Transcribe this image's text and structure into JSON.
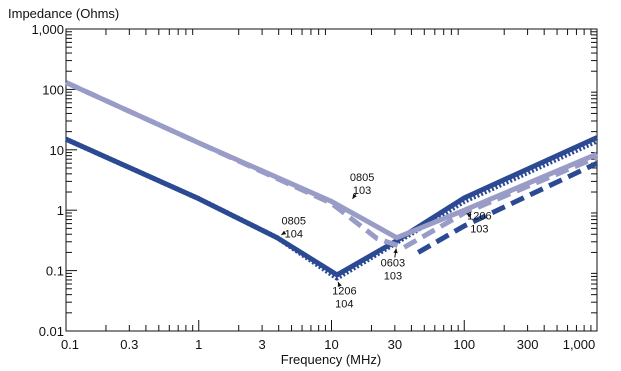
{
  "chart_data": {
    "type": "line",
    "ylabel": "Impedance (Ohms)",
    "xlabel": "Frequency (MHz)",
    "xscale": "log",
    "yscale": "log",
    "xlim": [
      0.1,
      1000
    ],
    "ylim": [
      0.01,
      1000
    ],
    "grid": false,
    "x_ticks": [
      {
        "v": 0.1,
        "label": "0.1"
      },
      {
        "v": 0.3,
        "label": "0.3"
      },
      {
        "v": 1,
        "label": "1"
      },
      {
        "v": 3,
        "label": "3"
      },
      {
        "v": 10,
        "label": "10"
      },
      {
        "v": 30,
        "label": "30"
      },
      {
        "v": 100,
        "label": "100"
      },
      {
        "v": 300,
        "label": "300"
      },
      {
        "v": 1000,
        "label": "1,000"
      }
    ],
    "y_ticks": [
      {
        "v": 0.01,
        "label": "0.01"
      },
      {
        "v": 0.1,
        "label": "0.1"
      },
      {
        "v": 1,
        "label": "1"
      },
      {
        "v": 10,
        "label": "10"
      },
      {
        "v": 100,
        "label": "100"
      },
      {
        "v": 1000,
        "label": "1,000"
      }
    ],
    "series": [
      {
        "id": "0805-104",
        "color": "#2b4a93",
        "style": "solid",
        "points": [
          [
            0.1,
            15
          ],
          [
            1,
            1.55
          ],
          [
            3.9,
            0.35
          ],
          [
            11,
            0.085
          ],
          [
            30,
            0.3
          ],
          [
            100,
            1.6
          ],
          [
            1000,
            16
          ]
        ]
      },
      {
        "id": "1206-104",
        "color": "#2b4a93",
        "style": "dotted",
        "points": [
          [
            0.1,
            15
          ],
          [
            1,
            1.55
          ],
          [
            3.9,
            0.35
          ],
          [
            11,
            0.075
          ],
          [
            30,
            0.28
          ],
          [
            100,
            1.4
          ],
          [
            1000,
            14
          ]
        ]
      },
      {
        "id": "0805-103",
        "color": "#9a9cc8",
        "style": "solid",
        "points": [
          [
            0.1,
            130
          ],
          [
            1,
            13
          ],
          [
            10,
            1.4
          ],
          [
            31,
            0.35
          ],
          [
            100,
            1.0
          ],
          [
            1000,
            8.5
          ]
        ]
      },
      {
        "id": "1206-103",
        "color": "#2b4a93",
        "style": "dashed",
        "points": [
          [
            45,
            0.2
          ],
          [
            100,
            0.55
          ],
          [
            1000,
            6
          ]
        ]
      },
      {
        "id": "0603-103",
        "color": "#9a9cc8",
        "style": "dashed",
        "points": [
          [
            0.1,
            130
          ],
          [
            1,
            13
          ],
          [
            10,
            1.3
          ],
          [
            22,
            0.34
          ],
          [
            35,
            0.24
          ],
          [
            100,
            0.9
          ],
          [
            1000,
            7.5
          ]
        ]
      }
    ],
    "annotations": [
      {
        "line1": "0805",
        "line2": "103",
        "x": 17,
        "y": 2.7,
        "arrow_to": [
          14,
          1.4
        ]
      },
      {
        "line1": "0805",
        "line2": "104",
        "x": 5.2,
        "y": 0.52,
        "arrow_to": [
          4.0,
          0.37
        ]
      },
      {
        "line1": "0603",
        "line2": "103",
        "x": 29,
        "y": 0.105,
        "arrow_to": [
          31,
          0.26
        ]
      },
      {
        "line1": "1206",
        "line2": "104",
        "x": 12.5,
        "y": 0.036,
        "arrow_to": [
          11,
          0.072
        ]
      },
      {
        "line1": "1206",
        "line2": "103",
        "x": 130,
        "y": 0.62,
        "arrow_to": [
          100,
          0.95
        ]
      }
    ]
  }
}
